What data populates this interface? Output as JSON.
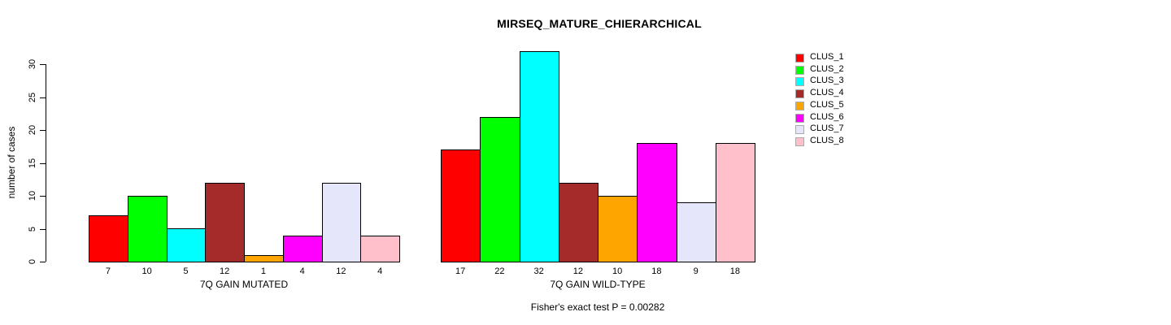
{
  "chart_data": {
    "type": "bar",
    "title": "MIRSEQ_MATURE_CHIERARCHICAL",
    "ylabel": "number of cases",
    "xlabel": "",
    "ylim": [
      0,
      30
    ],
    "yticks": [
      0,
      5,
      10,
      15,
      20,
      25,
      30
    ],
    "grid": false,
    "legend_position": "right",
    "bar_value_labels_shown": true,
    "categories": [
      "7Q GAIN MUTATED",
      "7Q GAIN WILD-TYPE"
    ],
    "series": [
      {
        "name": "CLUS_1",
        "color": "#FF0000",
        "values": [
          7,
          17
        ]
      },
      {
        "name": "CLUS_2",
        "color": "#00FF00",
        "values": [
          10,
          22
        ]
      },
      {
        "name": "CLUS_3",
        "color": "#00FFFF",
        "values": [
          5,
          32
        ]
      },
      {
        "name": "CLUS_4",
        "color": "#A52A2A",
        "values": [
          12,
          12
        ]
      },
      {
        "name": "CLUS_5",
        "color": "#FFA500",
        "values": [
          1,
          10
        ]
      },
      {
        "name": "CLUS_6",
        "color": "#FF00FF",
        "values": [
          4,
          18
        ]
      },
      {
        "name": "CLUS_7",
        "color": "#E6E6FA",
        "values": [
          12,
          9
        ]
      },
      {
        "name": "CLUS_8",
        "color": "#FFC0CB",
        "values": [
          4,
          18
        ]
      }
    ],
    "caption": "Fisher's exact test P = 0.00282",
    "axis_color": "#000000",
    "background_color": "#ffffff"
  }
}
